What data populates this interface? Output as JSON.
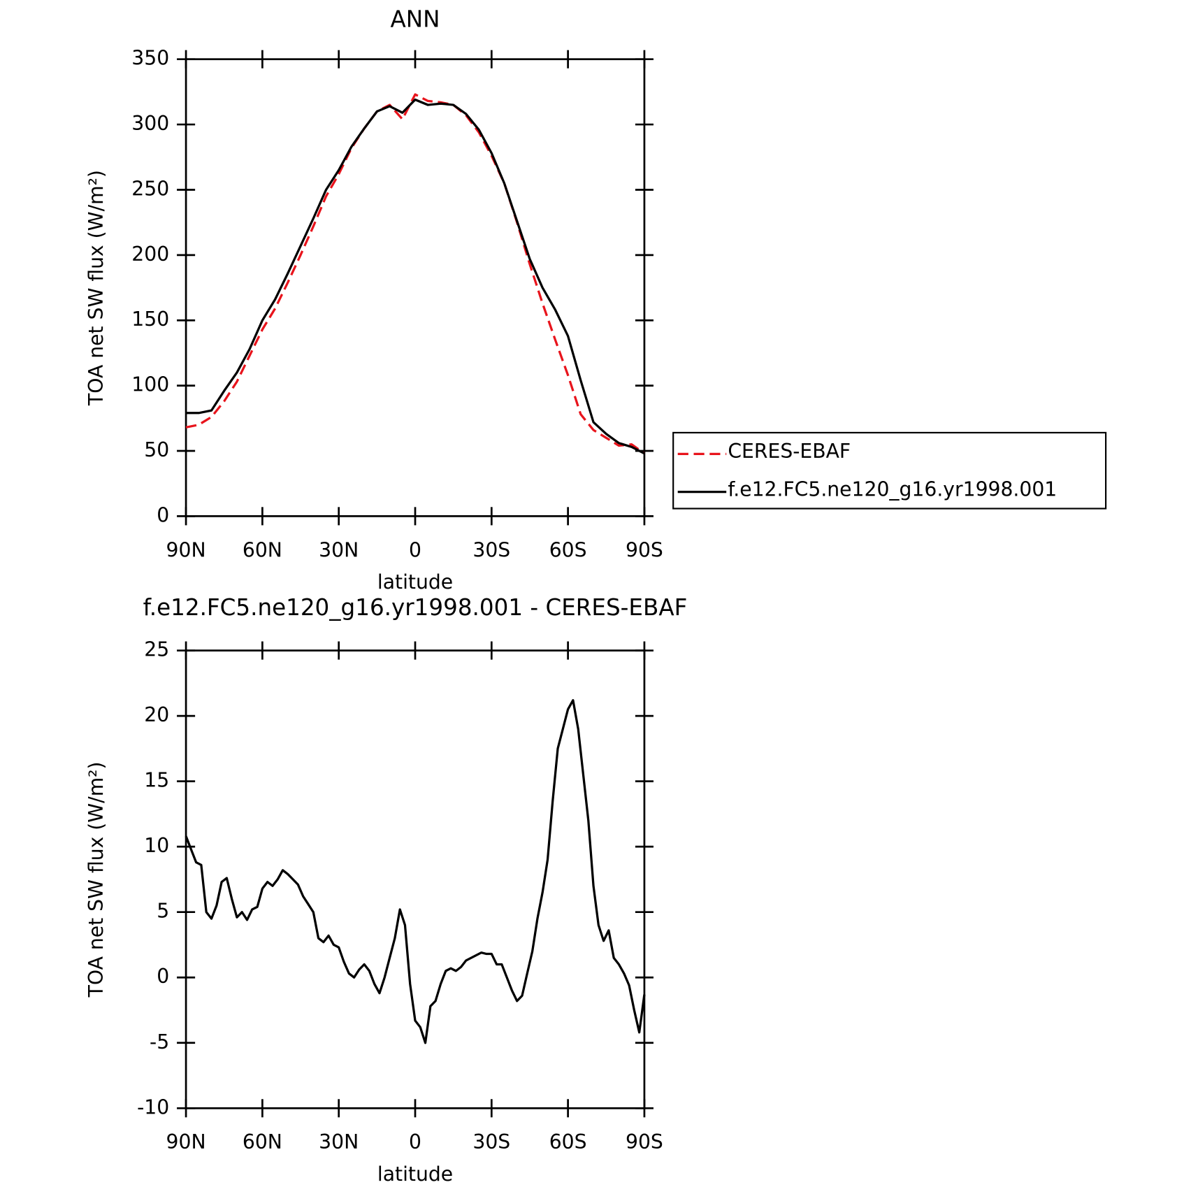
{
  "chart_data": [
    {
      "type": "line",
      "title": "ANN",
      "xlabel": "latitude",
      "ylabel": "TOA net SW flux (W/m²)",
      "x": [
        90,
        85,
        80,
        75,
        70,
        65,
        60,
        55,
        50,
        45,
        40,
        35,
        30,
        25,
        20,
        15,
        10,
        5,
        0,
        -5,
        -10,
        -15,
        -20,
        -25,
        -30,
        -35,
        -40,
        -45,
        -50,
        -55,
        -60,
        -65,
        -70,
        -75,
        -80,
        -85,
        -90
      ],
      "series": [
        {
          "name": "CERES-EBAF",
          "color": "#e8141c",
          "dash": true,
          "values": [
            68,
            70,
            76,
            88,
            103,
            123,
            143,
            159,
            179,
            200,
            222,
            245,
            262,
            282,
            297,
            310,
            315,
            304,
            323,
            318,
            317,
            315,
            307,
            294,
            276,
            255,
            225,
            193,
            163,
            135,
            108,
            78,
            66,
            60,
            54,
            55,
            48
          ]
        },
        {
          "name": "f.e12.FC5.ne120_g16.yr1998.001",
          "color": "#000000",
          "dash": false,
          "values": [
            79,
            79,
            81,
            96,
            110,
            128,
            150,
            166,
            186,
            207,
            228,
            250,
            265,
            283,
            297,
            310,
            314,
            309,
            319,
            315,
            316,
            315,
            308,
            296,
            278,
            255,
            226,
            197,
            175,
            158,
            138,
            104,
            72,
            63,
            56,
            53,
            48
          ]
        }
      ],
      "xlim": [
        90,
        -90
      ],
      "xticks": [
        {
          "value": 90,
          "label": "90N"
        },
        {
          "value": 60,
          "label": "60N"
        },
        {
          "value": 30,
          "label": "30N"
        },
        0,
        {
          "value": -30,
          "label": "30S"
        },
        {
          "value": -60,
          "label": "60S"
        },
        {
          "value": -90,
          "label": "90S"
        }
      ],
      "ylim": [
        0,
        350
      ],
      "yticks": [
        0,
        50,
        100,
        150,
        200,
        250,
        300,
        350
      ],
      "legend": "right",
      "grid": false
    },
    {
      "type": "line",
      "title": "f.e12.FC5.ne120_g16.yr1998.001 - CERES-EBAF",
      "xlabel": "latitude",
      "ylabel": "TOA net SW flux (W/m²)",
      "x": [
        90,
        88,
        86,
        84,
        82,
        80,
        78,
        76,
        74,
        72,
        70,
        68,
        66,
        64,
        62,
        60,
        58,
        56,
        54,
        52,
        50,
        48,
        46,
        44,
        42,
        40,
        38,
        36,
        34,
        32,
        30,
        28,
        26,
        24,
        22,
        20,
        18,
        16,
        14,
        12,
        10,
        8,
        6,
        4,
        2,
        0,
        -2,
        -4,
        -6,
        -8,
        -10,
        -12,
        -14,
        -16,
        -18,
        -20,
        -22,
        -24,
        -26,
        -28,
        -30,
        -32,
        -34,
        -36,
        -38,
        -40,
        -42,
        -44,
        -46,
        -48,
        -50,
        -52,
        -54,
        -56,
        -58,
        -60,
        -62,
        -64,
        -66,
        -68,
        -70,
        -72,
        -74,
        -76,
        -78,
        -80,
        -82,
        -84,
        -86,
        -88,
        -90
      ],
      "values": [
        10.8,
        9.8,
        8.8,
        8.6,
        5.0,
        4.5,
        5.5,
        7.3,
        7.6,
        6.0,
        4.6,
        5.0,
        4.4,
        5.2,
        5.4,
        6.8,
        7.3,
        7.0,
        7.5,
        8.2,
        7.9,
        7.5,
        7.1,
        6.2,
        5.6,
        5.0,
        3.0,
        2.7,
        3.2,
        2.5,
        2.3,
        1.2,
        0.3,
        0.0,
        0.6,
        1.0,
        0.5,
        -0.5,
        -1.2,
        0.0,
        1.5,
        3.0,
        5.2,
        4.0,
        -0.5,
        -3.3,
        -3.8,
        -5.0,
        -2.2,
        -1.8,
        -0.5,
        0.5,
        0.7,
        0.5,
        0.8,
        1.3,
        1.5,
        1.7,
        1.9,
        1.8,
        1.8,
        1.0,
        1.0,
        0.0,
        -1.0,
        -1.8,
        -1.4,
        0.3,
        2.0,
        4.5,
        6.5,
        9.0,
        13.5,
        17.5,
        19.0,
        20.5,
        21.2,
        19.0,
        15.5,
        12.0,
        7.0,
        4.0,
        2.8,
        3.6,
        1.5,
        1.0,
        0.3,
        -0.6,
        -2.5,
        -4.2,
        -1.3
      ],
      "color": "#000000",
      "xlim": [
        90,
        -90
      ],
      "xticks": [
        {
          "value": 90,
          "label": "90N"
        },
        {
          "value": 60,
          "label": "60N"
        },
        {
          "value": 30,
          "label": "30N"
        },
        0,
        {
          "value": -30,
          "label": "30S"
        },
        {
          "value": -60,
          "label": "60S"
        },
        {
          "value": -90,
          "label": "90S"
        }
      ],
      "ylim": [
        -10,
        25
      ],
      "yticks": [
        -10,
        -5,
        0,
        5,
        10,
        15,
        20,
        25
      ],
      "grid": false
    }
  ]
}
